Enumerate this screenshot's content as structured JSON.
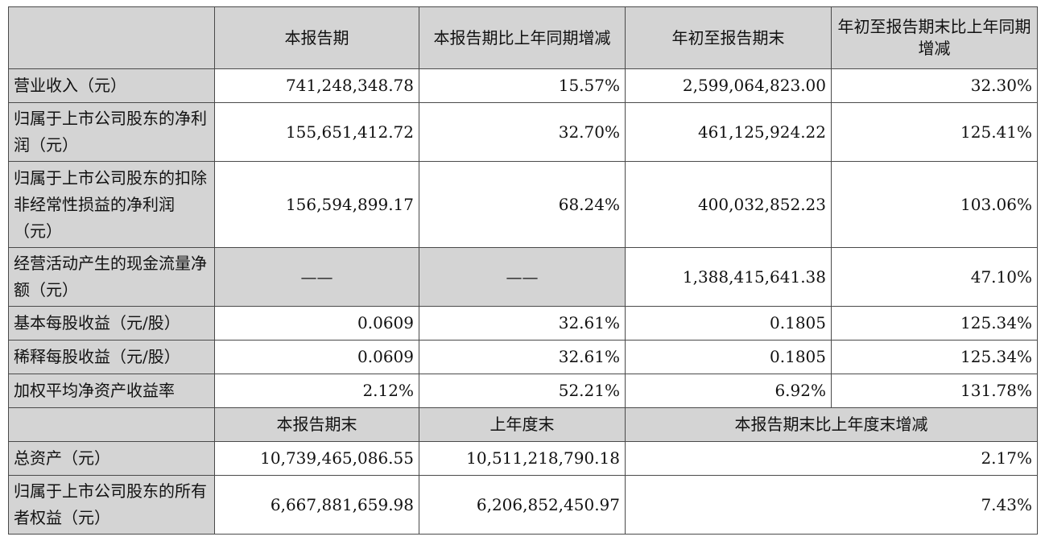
{
  "header": {
    "corner": "",
    "col1": "本报告期",
    "col2": "本报告期比上年同期增减",
    "col3": "年初至报告期末",
    "col4": "年初至报告期末比上年同期增减"
  },
  "rows": [
    {
      "label": "营业收入（元）",
      "v1": "741,248,348.78",
      "v2": "15.57%",
      "v3": "2,599,064,823.00",
      "v4": "32.30%"
    },
    {
      "label": "归属于上市公司股东的净利润（元）",
      "v1": "155,651,412.72",
      "v2": "32.70%",
      "v3": "461,125,924.22",
      "v4": "125.41%"
    },
    {
      "label": "归属于上市公司股东的扣除非经常性损益的净利润（元）",
      "v1": "156,594,899.17",
      "v2": "68.24%",
      "v3": "400,032,852.23",
      "v4": "103.06%"
    },
    {
      "label": "经营活动产生的现金流量净额（元）",
      "v1": "——",
      "v2": "——",
      "v3": "1,388,415,641.38",
      "v4": "47.10%"
    },
    {
      "label": "基本每股收益（元/股）",
      "v1": "0.0609",
      "v2": "32.61%",
      "v3": "0.1805",
      "v4": "125.34%"
    },
    {
      "label": "稀释每股收益（元/股）",
      "v1": "0.0609",
      "v2": "32.61%",
      "v3": "0.1805",
      "v4": "125.34%"
    },
    {
      "label": "加权平均净资产收益率",
      "v1": "2.12%",
      "v2": "52.21%",
      "v3": "6.92%",
      "v4": "131.78%"
    }
  ],
  "header2": {
    "corner": "",
    "col1": "本报告期末",
    "col2": "上年度末",
    "col3": "本报告期末比上年度末增减"
  },
  "rows2": [
    {
      "label": "总资产（元）",
      "v1": "10,739,465,086.55",
      "v2": "10,511,218,790.18",
      "v3": "2.17%"
    },
    {
      "label": "归属于上市公司股东的所有者权益（元）",
      "v1": "6,667,881,659.98",
      "v2": "6,206,852,450.97",
      "v3": "7.43%"
    }
  ]
}
